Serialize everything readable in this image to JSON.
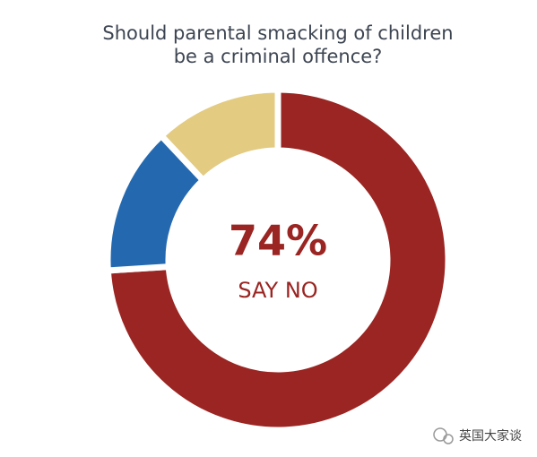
{
  "chart_data": {
    "type": "donut",
    "title": [
      "Should parental smacking of children",
      "be a criminal offence?"
    ],
    "categories": [
      null,
      null,
      null
    ],
    "values": [
      74,
      14,
      12
    ],
    "value_labels": [
      "74%",
      null,
      null
    ],
    "colors": [
      "#9a2522",
      "#2469b0",
      "#e3cb82"
    ],
    "annotation": "SAY NO"
  },
  "watermark": "英国大家谈"
}
